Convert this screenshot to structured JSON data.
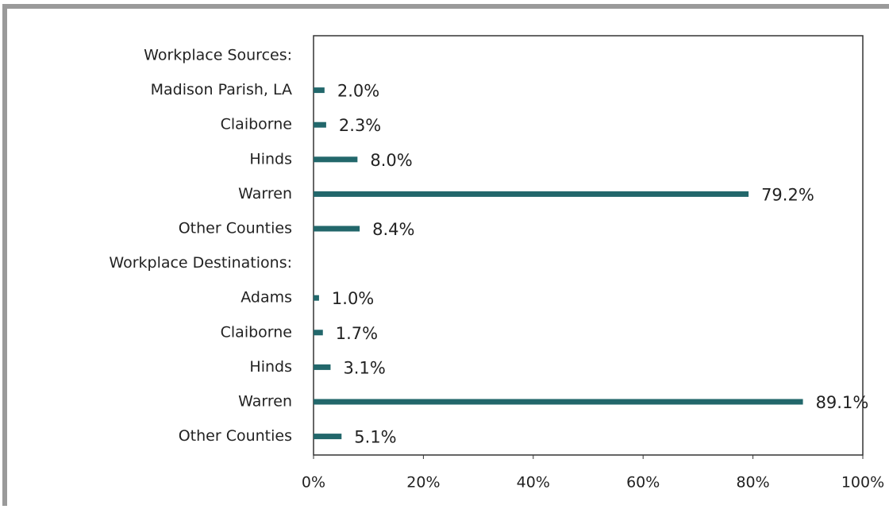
{
  "chart_data": {
    "type": "barh",
    "categories": [
      "Workplace Sources:",
      "Madison Parish, LA",
      "Claiborne",
      "Hinds",
      "Warren",
      "Other Counties",
      "Workplace Destinations:",
      "Adams",
      "Claiborne",
      "Hinds",
      "Warren",
      "Other Counties"
    ],
    "values": [
      null,
      2.0,
      2.3,
      8.0,
      79.2,
      8.4,
      null,
      1.0,
      1.7,
      3.1,
      89.1,
      5.1
    ],
    "value_labels": [
      null,
      "2.0%",
      "2.3%",
      "8.0%",
      "79.2%",
      "8.4%",
      null,
      "1.0%",
      "1.7%",
      "3.1%",
      "89.1%",
      "5.1%"
    ],
    "color": "#22676b",
    "xlim": [
      0,
      100
    ],
    "xticks": [
      {
        "value": 0,
        "label": "0%"
      },
      {
        "value": 20,
        "label": "20%"
      },
      {
        "value": 40,
        "label": "40%"
      },
      {
        "value": 60,
        "label": "60%"
      },
      {
        "value": 80,
        "label": "80%"
      },
      {
        "value": 100,
        "label": "100%"
      }
    ],
    "grid": false
  }
}
